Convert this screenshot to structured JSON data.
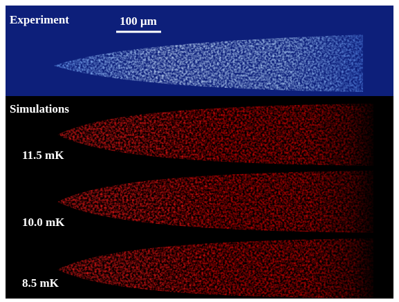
{
  "experiment_label": "Experiment",
  "scale_bar_label": "100 µm",
  "simulations_label": "Simulations",
  "simulations": [
    {
      "label": "11.5 mK"
    },
    {
      "label": "10.0 mK"
    },
    {
      "label": "8.5 mK"
    }
  ]
}
